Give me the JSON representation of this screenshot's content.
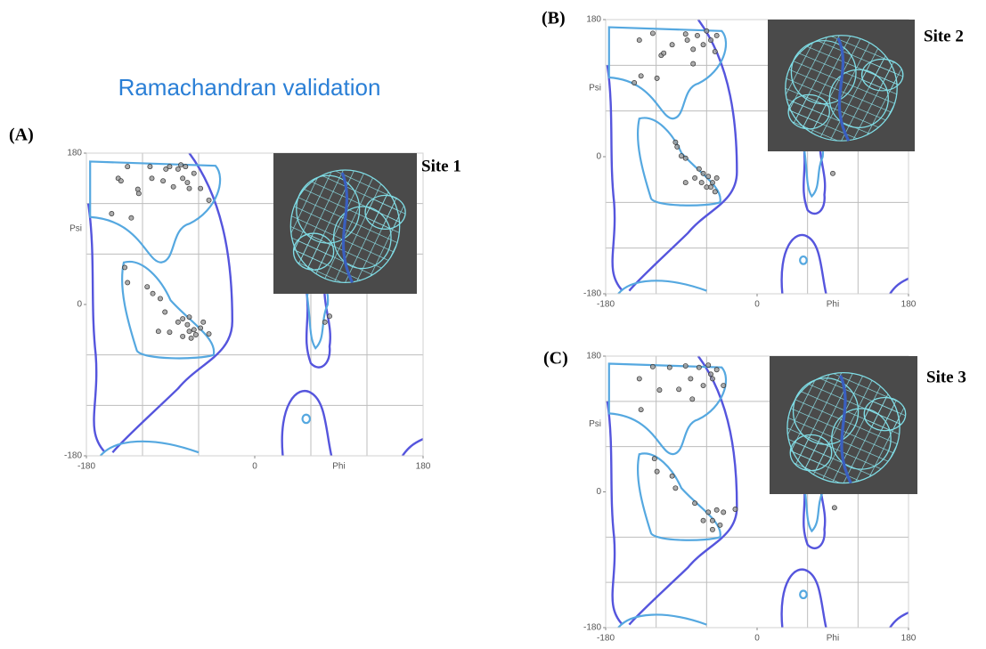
{
  "title": "Ramachandran validation",
  "chart_data": [
    {
      "type": "scatter",
      "panel": "(A)",
      "site": "Site 1",
      "xlabel": "Phi",
      "ylabel": "Psi",
      "xlim": [
        -180,
        180
      ],
      "ylim": [
        -180,
        180
      ],
      "xticks": [
        -180,
        0,
        180
      ],
      "yticks": [
        -180,
        0,
        180
      ],
      "color": "#999999",
      "x": [
        -146,
        -143,
        -136,
        -125,
        -124,
        -112,
        -110,
        -98,
        -95,
        -91,
        -87,
        -82,
        -79,
        -77,
        -74,
        -72,
        -70,
        -65,
        -58,
        -49,
        -153,
        -132,
        -139,
        -136,
        -115,
        -109,
        -101,
        -96,
        -103,
        -91,
        -82,
        -77,
        -72,
        -70,
        -68,
        -65,
        -63,
        -58,
        -77,
        -70,
        -55,
        -49,
        80,
        75
      ],
      "y": [
        150,
        147,
        164,
        137,
        132,
        164,
        150,
        147,
        161,
        164,
        140,
        161,
        166,
        150,
        164,
        145,
        138,
        156,
        138,
        124,
        108,
        103,
        44,
        26,
        21,
        13,
        7,
        -9,
        -32,
        -33,
        -21,
        -17,
        -24,
        -32,
        -40,
        -30,
        -36,
        -28,
        -38,
        -15,
        -21,
        -35,
        -14,
        -21
      ]
    },
    {
      "type": "scatter",
      "panel": "(B)",
      "site": "Site 2",
      "xlabel": "Phi",
      "ylabel": "Psi",
      "xlim": [
        -180,
        180
      ],
      "ylim": [
        -180,
        180
      ],
      "xticks": [
        -180,
        0,
        180
      ],
      "yticks": [
        -180,
        0,
        180
      ],
      "color": "#999999",
      "x": [
        -140,
        -124,
        -114,
        -111,
        -101,
        -85,
        -83,
        -76,
        -71,
        -64,
        -60,
        -55,
        -50,
        -48,
        -76,
        -138,
        -146,
        -119,
        -97,
        -95,
        -90,
        -85,
        -69,
        -64,
        -58,
        -53,
        -55,
        -50,
        -60,
        -66,
        -48,
        -74,
        -85,
        90
      ],
      "y": [
        153,
        162,
        133,
        136,
        147,
        161,
        153,
        141,
        159,
        147,
        165,
        153,
        138,
        159,
        122,
        106,
        97,
        103,
        19,
        13,
        1,
        -2,
        -16,
        -22,
        -26,
        -34,
        -40,
        -46,
        -40,
        -34,
        -28,
        -28,
        -34,
        -22
      ]
    },
    {
      "type": "scatter",
      "panel": "(C)",
      "site": "Site 3",
      "xlabel": "Phi",
      "ylabel": "Psi",
      "xlim": [
        -180,
        180
      ],
      "ylim": [
        -180,
        180
      ],
      "xticks": [
        -180,
        0,
        180
      ],
      "yticks": [
        -180,
        0,
        180
      ],
      "color": "#999999",
      "x": [
        -124,
        -104,
        -85,
        -69,
        -58,
        -48,
        -140,
        -116,
        -93,
        -79,
        -64,
        -53,
        -40,
        -55,
        -77,
        -138,
        -122,
        -119,
        -101,
        -97,
        -74,
        -58,
        -53,
        -48,
        -44,
        -40,
        -64,
        -53,
        -26,
        92
      ],
      "y": [
        166,
        165,
        167,
        165,
        168,
        162,
        150,
        135,
        136,
        150,
        141,
        150,
        141,
        156,
        123,
        109,
        44,
        27,
        21,
        5,
        -15,
        -27,
        -38,
        -24,
        -44,
        -27,
        -38,
        -50,
        -23,
        -21
      ]
    }
  ]
}
